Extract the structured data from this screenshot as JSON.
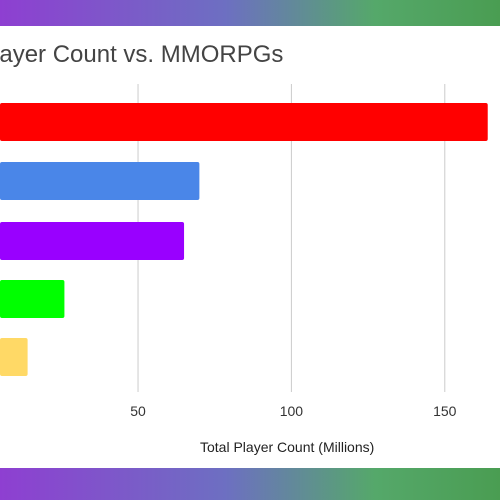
{
  "chart_data": {
    "type": "bar",
    "orientation": "horizontal",
    "title": "Player Count vs. MMORPGs",
    "xlabel": "Total Player Count (Millions)",
    "ylabel": "",
    "categories": [
      "",
      "",
      "",
      "",
      ""
    ],
    "values": [
      164,
      70,
      65,
      26,
      14
    ],
    "colors": [
      "#ff0000",
      "#4a86e8",
      "#9900ff",
      "#00ff00",
      "#ffd966"
    ],
    "xticks": [
      50,
      100,
      150
    ],
    "xlim": [
      5,
      168
    ],
    "grid": true,
    "legend": "none"
  }
}
